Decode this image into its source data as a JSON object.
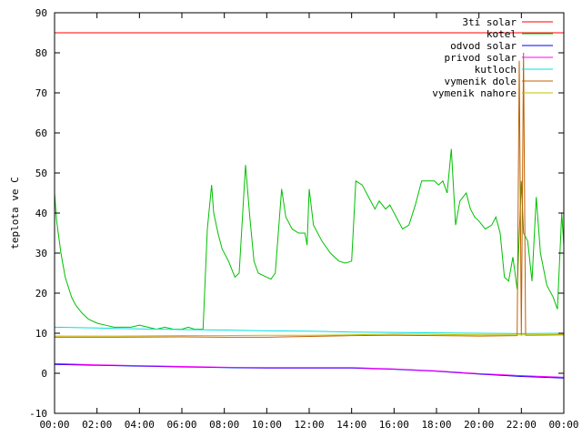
{
  "chart_data": {
    "type": "line",
    "title": "",
    "xlabel": "",
    "ylabel": "teplota ve C",
    "xlim": [
      0,
      24
    ],
    "ylim": [
      -10,
      90
    ],
    "x_ticks": [
      "00:00",
      "02:00",
      "04:00",
      "06:00",
      "08:00",
      "10:00",
      "12:00",
      "14:00",
      "16:00",
      "18:00",
      "20:00",
      "22:00",
      "00:00"
    ],
    "y_ticks": [
      -10,
      0,
      10,
      20,
      30,
      40,
      50,
      60,
      70,
      80,
      90
    ],
    "grid": false,
    "legend_position": "top-right",
    "series": [
      {
        "name": "3ti solar",
        "color": "#ff0000",
        "points": [
          [
            0,
            85
          ],
          [
            24,
            85
          ]
        ]
      },
      {
        "name": "kotel",
        "color": "#00c000",
        "points": [
          [
            0,
            45
          ],
          [
            0.1,
            38
          ],
          [
            0.3,
            30
          ],
          [
            0.5,
            24
          ],
          [
            0.8,
            19
          ],
          [
            1.0,
            17
          ],
          [
            1.3,
            15
          ],
          [
            1.6,
            13.5
          ],
          [
            2.0,
            12.5
          ],
          [
            2.4,
            12
          ],
          [
            2.8,
            11.5
          ],
          [
            3.2,
            11.5
          ],
          [
            3.6,
            11.5
          ],
          [
            4.0,
            12
          ],
          [
            4.4,
            11.5
          ],
          [
            4.8,
            11
          ],
          [
            5.2,
            11.5
          ],
          [
            5.6,
            11
          ],
          [
            6.0,
            11
          ],
          [
            6.3,
            11.5
          ],
          [
            6.6,
            11
          ],
          [
            6.9,
            11
          ],
          [
            7.0,
            11
          ],
          [
            7.2,
            36
          ],
          [
            7.4,
            47
          ],
          [
            7.5,
            40
          ],
          [
            7.7,
            35
          ],
          [
            7.9,
            31
          ],
          [
            8.2,
            28
          ],
          [
            8.5,
            24
          ],
          [
            8.7,
            25
          ],
          [
            9.0,
            52
          ],
          [
            9.2,
            39
          ],
          [
            9.4,
            28
          ],
          [
            9.6,
            25
          ],
          [
            10.0,
            24
          ],
          [
            10.2,
            23.5
          ],
          [
            10.4,
            25
          ],
          [
            10.7,
            46
          ],
          [
            10.9,
            39
          ],
          [
            11.2,
            36
          ],
          [
            11.5,
            35
          ],
          [
            11.8,
            35
          ],
          [
            11.9,
            32
          ],
          [
            12.0,
            46
          ],
          [
            12.2,
            37
          ],
          [
            12.6,
            33
          ],
          [
            13.0,
            30
          ],
          [
            13.4,
            28
          ],
          [
            13.7,
            27.5
          ],
          [
            14.0,
            28
          ],
          [
            14.2,
            48
          ],
          [
            14.5,
            47
          ],
          [
            14.8,
            44
          ],
          [
            15.1,
            41
          ],
          [
            15.3,
            43
          ],
          [
            15.6,
            41
          ],
          [
            15.8,
            42
          ],
          [
            16.1,
            39
          ],
          [
            16.4,
            36
          ],
          [
            16.7,
            37
          ],
          [
            17.0,
            42
          ],
          [
            17.3,
            48
          ],
          [
            17.6,
            48
          ],
          [
            17.9,
            48
          ],
          [
            18.1,
            47
          ],
          [
            18.3,
            48
          ],
          [
            18.5,
            45
          ],
          [
            18.7,
            56
          ],
          [
            18.9,
            37
          ],
          [
            19.1,
            43
          ],
          [
            19.4,
            45
          ],
          [
            19.6,
            41
          ],
          [
            19.8,
            39
          ],
          [
            20.0,
            38
          ],
          [
            20.3,
            36
          ],
          [
            20.6,
            37
          ],
          [
            20.8,
            39
          ],
          [
            21.0,
            35
          ],
          [
            21.2,
            24
          ],
          [
            21.4,
            23
          ],
          [
            21.6,
            29
          ],
          [
            21.8,
            21
          ],
          [
            22.0,
            48
          ],
          [
            22.1,
            35
          ],
          [
            22.3,
            33
          ],
          [
            22.5,
            23
          ],
          [
            22.7,
            44
          ],
          [
            22.9,
            30
          ],
          [
            23.2,
            22
          ],
          [
            23.5,
            19
          ],
          [
            23.7,
            16
          ],
          [
            23.9,
            40
          ],
          [
            24.0,
            32
          ]
        ]
      },
      {
        "name": "odvod solar",
        "color": "#0000ff",
        "points": [
          [
            0,
            2.2
          ],
          [
            2,
            2.0
          ],
          [
            4,
            1.8
          ],
          [
            6,
            1.6
          ],
          [
            8,
            1.4
          ],
          [
            10,
            1.3
          ],
          [
            12,
            1.3
          ],
          [
            14,
            1.3
          ],
          [
            16,
            1.0
          ],
          [
            18,
            0.5
          ],
          [
            20,
            -0.2
          ],
          [
            22,
            -0.8
          ],
          [
            24,
            -1.2
          ]
        ]
      },
      {
        "name": "privod solar",
        "color": "#ff00ff",
        "points": [
          [
            0,
            2.4
          ],
          [
            2,
            2.1
          ],
          [
            4,
            1.9
          ],
          [
            6,
            1.7
          ],
          [
            8,
            1.5
          ],
          [
            10,
            1.4
          ],
          [
            12,
            1.4
          ],
          [
            14,
            1.4
          ],
          [
            16,
            1.1
          ],
          [
            18,
            0.6
          ],
          [
            20,
            -0.1
          ],
          [
            22,
            -0.6
          ],
          [
            24,
            -1.0
          ]
        ]
      },
      {
        "name": "kutloch",
        "color": "#00e0e0",
        "points": [
          [
            0,
            11.5
          ],
          [
            2,
            11.3
          ],
          [
            4,
            11.1
          ],
          [
            6,
            10.9
          ],
          [
            8,
            10.8
          ],
          [
            10,
            10.6
          ],
          [
            12,
            10.5
          ],
          [
            14,
            10.3
          ],
          [
            16,
            10.2
          ],
          [
            18,
            10.1
          ],
          [
            20,
            10.0
          ],
          [
            22,
            9.9
          ],
          [
            24,
            10.0
          ]
        ]
      },
      {
        "name": "vymenik dole",
        "color": "#c06000",
        "points": [
          [
            0,
            9.0
          ],
          [
            3,
            9.0
          ],
          [
            6,
            9.1
          ],
          [
            8,
            9.0
          ],
          [
            10,
            9.0
          ],
          [
            12,
            9.2
          ],
          [
            14,
            9.4
          ],
          [
            16,
            9.5
          ],
          [
            18,
            9.4
          ],
          [
            20,
            9.3
          ],
          [
            21.8,
            9.4
          ],
          [
            21.9,
            78
          ],
          [
            22.0,
            9.4
          ],
          [
            22.1,
            80
          ],
          [
            22.2,
            9.5
          ],
          [
            24,
            9.6
          ]
        ]
      },
      {
        "name": "vymenik nahore",
        "color": "#c0c000",
        "points": [
          [
            0,
            9.3
          ],
          [
            3,
            9.3
          ],
          [
            6,
            9.4
          ],
          [
            8,
            9.4
          ],
          [
            10,
            9.5
          ],
          [
            12,
            9.5
          ],
          [
            14,
            9.6
          ],
          [
            16,
            9.8
          ],
          [
            18,
            9.7
          ],
          [
            20,
            9.6
          ],
          [
            22,
            9.6
          ],
          [
            24,
            9.7
          ]
        ]
      }
    ]
  }
}
